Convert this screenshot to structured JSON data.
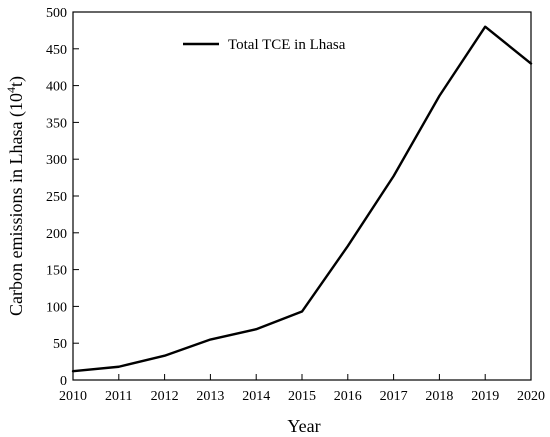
{
  "chart_data": {
    "type": "line",
    "x": [
      2010,
      2011,
      2012,
      2013,
      2014,
      2015,
      2016,
      2017,
      2018,
      2019,
      2020
    ],
    "series": [
      {
        "name": "Total TCE in Lhasa",
        "values": [
          12,
          18,
          33,
          55,
          69,
          93,
          182,
          277,
          386,
          480,
          430
        ],
        "color": "#000000"
      }
    ],
    "xlabel": "Year",
    "ylabel_main": "Carbon emissions in Lhasa (10",
    "ylabel_sup": "4",
    "ylabel_end": "t)",
    "xlim": [
      2010,
      2020
    ],
    "ylim": [
      0,
      500
    ],
    "xticks": [
      2010,
      2011,
      2012,
      2013,
      2014,
      2015,
      2016,
      2017,
      2018,
      2019,
      2020
    ],
    "yticks": [
      0,
      50,
      100,
      150,
      200,
      250,
      300,
      350,
      400,
      450,
      500
    ],
    "legend_position": "top-center",
    "grid": false
  }
}
